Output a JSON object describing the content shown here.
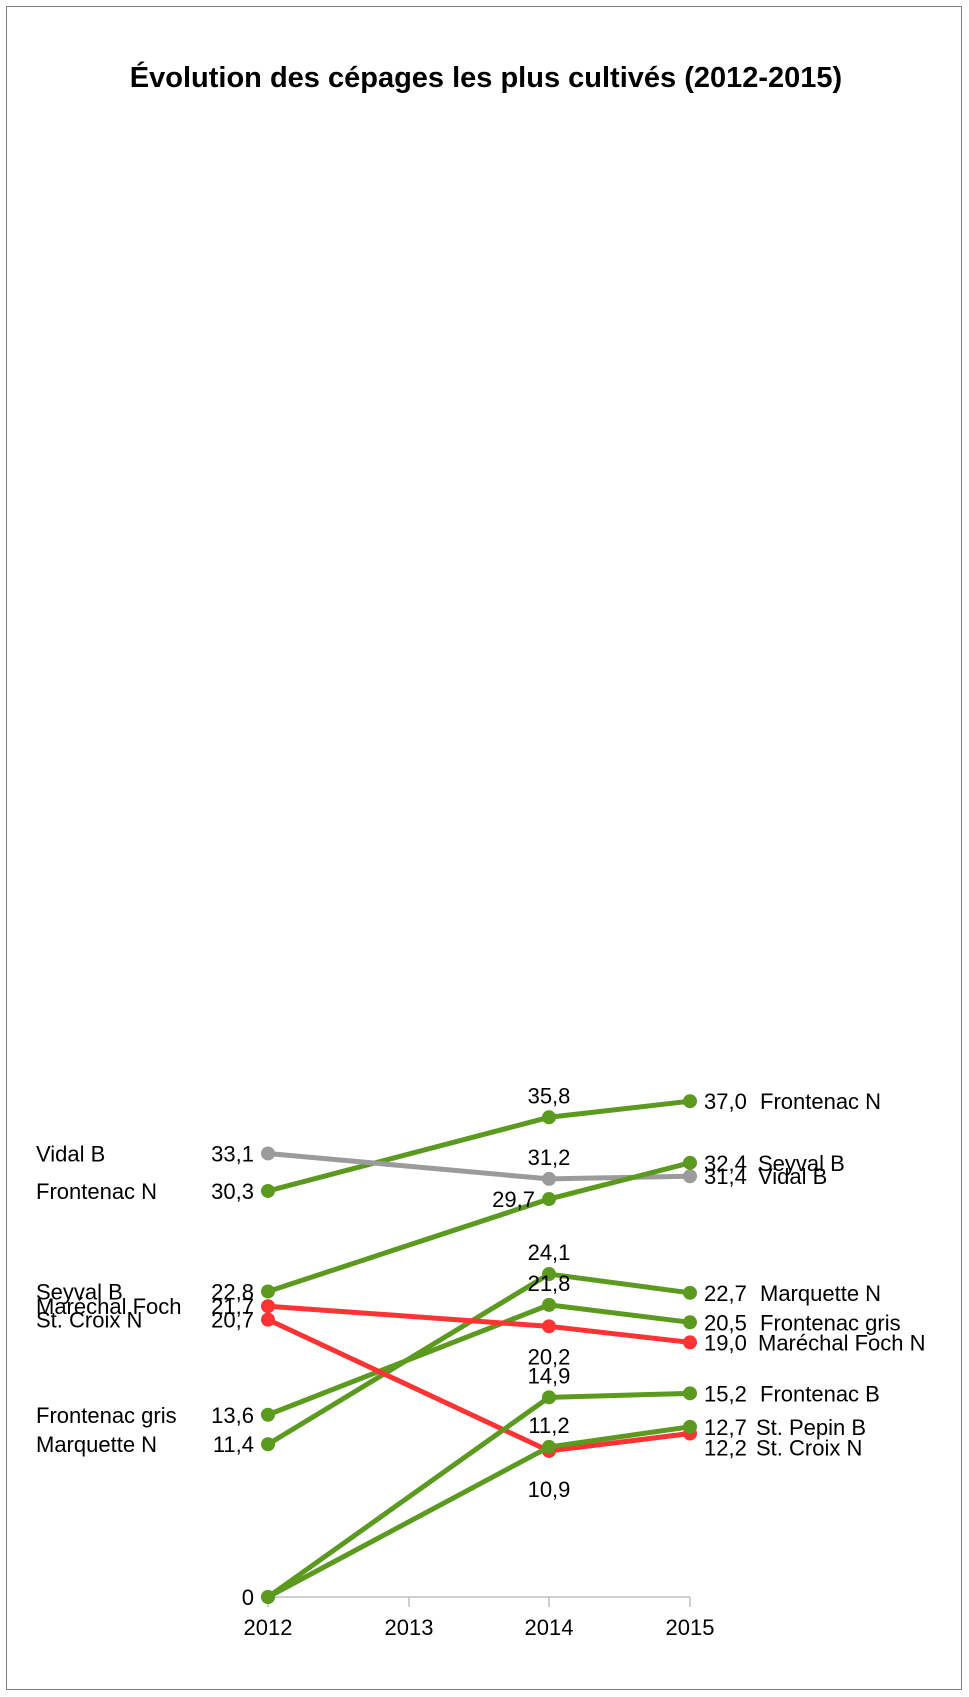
{
  "chart_data": {
    "type": "line",
    "title": "Évolution des cépages les plus cultivés (2012-2015)",
    "xlabel": "",
    "ylabel": "",
    "x": [
      "2012",
      "2013",
      "2014",
      "2015"
    ],
    "ylim": [
      0,
      38
    ],
    "y_tick_labels": [
      "0"
    ],
    "grid": false,
    "legend": "none",
    "colors": {
      "green": "#5b9a1f",
      "gray": "#9b9b9b",
      "red": "#ff3333",
      "axis": "#bfbfbf"
    },
    "series": [
      {
        "name": "Frontenac N",
        "color": "green",
        "values": [
          30.3,
          null,
          35.8,
          37.0
        ],
        "labels": [
          "30,3",
          "",
          "35,8",
          "37,0"
        ],
        "start_label": "Frontenac N",
        "end_label": "Frontenac N"
      },
      {
        "name": "Vidal B",
        "color": "gray",
        "values": [
          33.1,
          null,
          31.2,
          31.4
        ],
        "labels": [
          "33,1",
          "",
          "31,2",
          "31,4"
        ],
        "start_label": "Vidal B",
        "end_label": "Vidal B"
      },
      {
        "name": "Seyval B",
        "color": "green",
        "values": [
          22.8,
          null,
          29.7,
          32.4
        ],
        "labels": [
          "22,8",
          "",
          "29,7",
          "32,4"
        ],
        "start_label": "Seyval B",
        "end_label": "Seyval B"
      },
      {
        "name": "Marquette N",
        "color": "green",
        "values": [
          11.4,
          null,
          24.1,
          22.7
        ],
        "labels": [
          "11,4",
          "",
          "24,1",
          "22,7"
        ],
        "start_label": "Marquette N",
        "end_label": "Marquette N"
      },
      {
        "name": "Frontenac gris",
        "color": "green",
        "values": [
          13.6,
          null,
          21.8,
          20.5
        ],
        "labels": [
          "13,6",
          "",
          "21,8",
          "20,5"
        ],
        "start_label": "Frontenac gris",
        "end_label": "Frontenac gris"
      },
      {
        "name": "Maréchal Foch N",
        "color": "red",
        "values": [
          21.7,
          null,
          20.2,
          19.0
        ],
        "labels": [
          "21,7",
          "",
          "20,2",
          "19,0"
        ],
        "start_label": "Maréchal Foch",
        "end_label": "Maréchal Foch N"
      },
      {
        "name": "St. Croix N",
        "color": "red",
        "values": [
          20.7,
          null,
          10.9,
          12.2
        ],
        "labels": [
          "20,7",
          "",
          "10,9",
          "12,2"
        ],
        "start_label": "St. Croix N",
        "end_label": "St. Croix N"
      },
      {
        "name": "Frontenac B",
        "color": "green",
        "values": [
          0,
          null,
          14.9,
          15.2
        ],
        "labels": [
          "0",
          "",
          "14,9",
          "15,2"
        ],
        "start_label": "",
        "end_label": "Frontenac B"
      },
      {
        "name": "St. Pepin B",
        "color": "green",
        "values": [
          0,
          null,
          11.2,
          12.7
        ],
        "labels": [
          "",
          "",
          "11,2",
          "12,7"
        ],
        "start_label": "",
        "end_label": "St. Pepin B"
      }
    ]
  }
}
